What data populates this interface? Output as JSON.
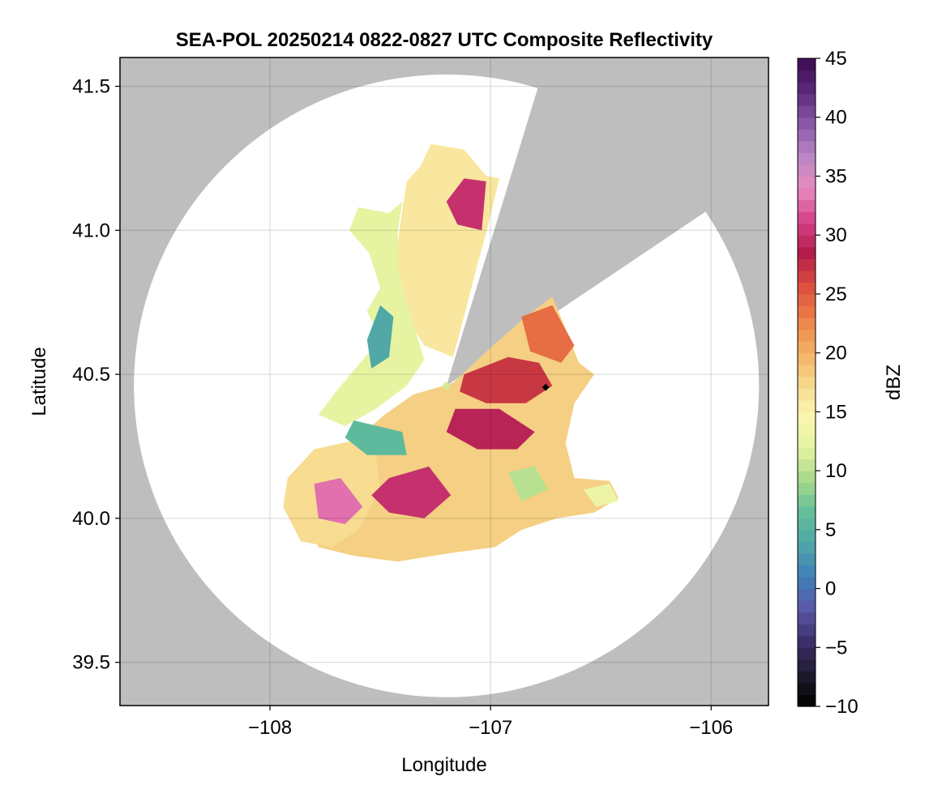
{
  "chart_data": {
    "type": "heatmap",
    "title": "SEA-POL 20250214 0822-0827 UTC Composite Reflectivity",
    "xlabel": "Longitude",
    "ylabel": "Latitude",
    "xlim": [
      -108.68,
      -105.74
    ],
    "ylim": [
      39.35,
      41.6
    ],
    "xticks": [
      {
        "value": -108,
        "label": "−108"
      },
      {
        "value": -107,
        "label": "−107"
      },
      {
        "value": -106,
        "label": "−106"
      }
    ],
    "yticks": [
      {
        "value": 39.5,
        "label": "39.5"
      },
      {
        "value": 40.0,
        "label": "40.0"
      },
      {
        "value": 40.5,
        "label": "40.5"
      },
      {
        "value": 41.0,
        "label": "41.0"
      },
      {
        "value": 41.5,
        "label": "41.5"
      }
    ],
    "grid": true,
    "radar_site": {
      "lon": -107.2,
      "lat": 40.46
    },
    "marker": {
      "lon": -106.75,
      "lat": 40.455,
      "shape": "diamond",
      "color": "#000000"
    },
    "coverage": {
      "center": {
        "lon": -107.2,
        "lat": 40.46
      },
      "radius_km": 120
    },
    "blocked_sectors_deg_from_north": [
      [
        17,
        56
      ]
    ],
    "colorbar": {
      "label": "dBZ",
      "range": [
        -10,
        45
      ],
      "ticks": [
        {
          "value": 45,
          "label": "45"
        },
        {
          "value": 40,
          "label": "40"
        },
        {
          "value": 35,
          "label": "35"
        },
        {
          "value": 30,
          "label": "30"
        },
        {
          "value": 25,
          "label": "25"
        },
        {
          "value": 20,
          "label": "20"
        },
        {
          "value": 15,
          "label": "15"
        },
        {
          "value": 10,
          "label": "10"
        },
        {
          "value": 5,
          "label": "5"
        },
        {
          "value": 0,
          "label": "0"
        },
        {
          "value": -5,
          "label": "−5"
        },
        {
          "value": -10,
          "label": "−10"
        }
      ],
      "colormap": [
        "#000000",
        "#1f1a2e",
        "#3b2f6b",
        "#5b57a8",
        "#3f7fb8",
        "#4fa6a8",
        "#63be9a",
        "#a6d98a",
        "#e6f4a2",
        "#fbf5b0",
        "#f6d78a",
        "#f3ad62",
        "#ec7e47",
        "#db4e3e",
        "#b21d4a",
        "#d5418a",
        "#e88bc0",
        "#b886c4",
        "#8a57a8",
        "#5b2a7a",
        "#3c0a52"
      ]
    },
    "colors": {
      "no_data": "#bebebe",
      "coverage_empty": "#ffffff",
      "grid": "#d9d9d9"
    },
    "echo_regions": [
      {
        "name": "north-arm",
        "dbz": 16,
        "points": [
          [
            -107.27,
            41.3
          ],
          [
            -107.12,
            41.28
          ],
          [
            -107.02,
            41.19
          ],
          [
            -106.96,
            41.18
          ],
          [
            -107.01,
            41.02
          ],
          [
            -107.06,
            40.88
          ],
          [
            -107.11,
            40.73
          ],
          [
            -107.17,
            40.56
          ],
          [
            -107.3,
            40.6
          ],
          [
            -107.4,
            40.72
          ],
          [
            -107.43,
            40.85
          ],
          [
            -107.42,
            40.96
          ],
          [
            -107.4,
            41.07
          ],
          [
            -107.38,
            41.17
          ],
          [
            -107.32,
            41.22
          ]
        ]
      },
      {
        "name": "west-fringe",
        "dbz": 12,
        "points": [
          [
            -107.4,
            41.1
          ],
          [
            -107.46,
            41.06
          ],
          [
            -107.6,
            41.08
          ],
          [
            -107.64,
            41.0
          ],
          [
            -107.55,
            40.92
          ],
          [
            -107.5,
            40.8
          ],
          [
            -107.56,
            40.72
          ],
          [
            -107.5,
            40.62
          ],
          [
            -107.58,
            40.55
          ],
          [
            -107.7,
            40.44
          ],
          [
            -107.78,
            40.36
          ],
          [
            -107.66,
            40.32
          ],
          [
            -107.52,
            40.38
          ],
          [
            -107.38,
            40.46
          ],
          [
            -107.3,
            40.55
          ],
          [
            -107.36,
            40.7
          ],
          [
            -107.42,
            40.86
          ],
          [
            -107.42,
            41.0
          ]
        ]
      },
      {
        "name": "southeast-main",
        "dbz": 18,
        "points": [
          [
            -107.17,
            40.47
          ],
          [
            -106.99,
            40.6
          ],
          [
            -106.84,
            40.7
          ],
          [
            -106.72,
            40.77
          ],
          [
            -106.64,
            40.62
          ],
          [
            -106.6,
            40.54
          ],
          [
            -106.53,
            40.5
          ],
          [
            -106.62,
            40.4
          ],
          [
            -106.66,
            40.26
          ],
          [
            -106.62,
            40.14
          ],
          [
            -106.46,
            40.13
          ],
          [
            -106.42,
            40.07
          ],
          [
            -106.53,
            40.02
          ],
          [
            -106.7,
            40.0
          ],
          [
            -106.86,
            39.96
          ],
          [
            -106.98,
            39.9
          ],
          [
            -107.18,
            39.88
          ],
          [
            -107.42,
            39.85
          ],
          [
            -107.62,
            39.87
          ],
          [
            -107.78,
            39.9
          ],
          [
            -107.84,
            40.0
          ],
          [
            -107.82,
            40.12
          ],
          [
            -107.72,
            40.2
          ],
          [
            -107.6,
            40.28
          ],
          [
            -107.48,
            40.36
          ],
          [
            -107.35,
            40.43
          ]
        ]
      },
      {
        "name": "southwest-lobe",
        "dbz": 17,
        "points": [
          [
            -107.92,
            40.14
          ],
          [
            -107.8,
            40.24
          ],
          [
            -107.62,
            40.27
          ],
          [
            -107.52,
            40.22
          ],
          [
            -107.5,
            40.1
          ],
          [
            -107.6,
            39.96
          ],
          [
            -107.72,
            39.9
          ],
          [
            -107.86,
            39.92
          ],
          [
            -107.94,
            40.04
          ]
        ]
      },
      {
        "name": "core-north",
        "dbz": 30,
        "points": [
          [
            -107.12,
            41.18
          ],
          [
            -107.02,
            41.17
          ],
          [
            -107.04,
            41.0
          ],
          [
            -107.15,
            41.02
          ],
          [
            -107.2,
            41.1
          ]
        ]
      },
      {
        "name": "core-east",
        "dbz": 27,
        "points": [
          [
            -107.12,
            40.5
          ],
          [
            -106.92,
            40.56
          ],
          [
            -106.78,
            40.54
          ],
          [
            -106.72,
            40.46
          ],
          [
            -106.84,
            40.4
          ],
          [
            -107.02,
            40.4
          ],
          [
            -107.14,
            40.44
          ]
        ]
      },
      {
        "name": "core-southeast",
        "dbz": 29,
        "points": [
          [
            -107.16,
            40.38
          ],
          [
            -106.96,
            40.38
          ],
          [
            -106.8,
            40.3
          ],
          [
            -106.88,
            40.24
          ],
          [
            -107.06,
            40.24
          ],
          [
            -107.2,
            40.3
          ]
        ]
      },
      {
        "name": "core-southwest",
        "dbz": 33,
        "points": [
          [
            -107.8,
            40.12
          ],
          [
            -107.68,
            40.14
          ],
          [
            -107.58,
            40.04
          ],
          [
            -107.66,
            39.98
          ],
          [
            -107.78,
            40.0
          ]
        ]
      },
      {
        "name": "core-south",
        "dbz": 30,
        "points": [
          [
            -107.46,
            40.14
          ],
          [
            -107.28,
            40.18
          ],
          [
            -107.18,
            40.08
          ],
          [
            -107.3,
            40.0
          ],
          [
            -107.46,
            40.02
          ],
          [
            -107.54,
            40.08
          ]
        ]
      },
      {
        "name": "convective-east",
        "dbz": 24,
        "points": [
          [
            -106.86,
            40.7
          ],
          [
            -106.72,
            40.74
          ],
          [
            -106.62,
            40.6
          ],
          [
            -106.68,
            40.54
          ],
          [
            -106.82,
            40.58
          ]
        ]
      },
      {
        "name": "low-band-west",
        "dbz": 4,
        "points": [
          [
            -107.5,
            40.74
          ],
          [
            -107.44,
            40.7
          ],
          [
            -107.46,
            40.56
          ],
          [
            -107.54,
            40.52
          ],
          [
            -107.56,
            40.62
          ]
        ]
      },
      {
        "name": "low-band-southwest",
        "dbz": 6,
        "points": [
          [
            -107.62,
            40.34
          ],
          [
            -107.4,
            40.3
          ],
          [
            -107.38,
            40.22
          ],
          [
            -107.56,
            40.22
          ],
          [
            -107.66,
            40.28
          ]
        ]
      },
      {
        "name": "cell-south-center",
        "dbz": 10,
        "points": [
          [
            -106.92,
            40.16
          ],
          [
            -106.8,
            40.18
          ],
          [
            -106.74,
            40.1
          ],
          [
            -106.86,
            40.06
          ]
        ]
      },
      {
        "name": "cell-east-rim",
        "dbz": 13,
        "points": [
          [
            -106.58,
            40.1
          ],
          [
            -106.46,
            40.12
          ],
          [
            -106.42,
            40.06
          ],
          [
            -106.52,
            40.04
          ]
        ]
      }
    ]
  }
}
